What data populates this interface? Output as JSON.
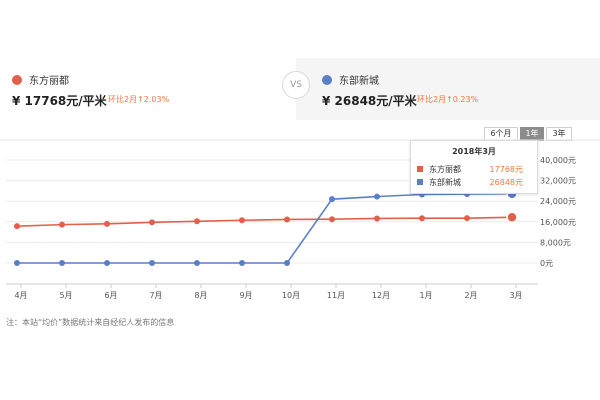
{
  "header": {
    "left": {
      "name": "东方丽都",
      "price": "¥ 17768元/平米",
      "change": "环比2月↑2.03%",
      "color": "#e2604b"
    },
    "vs": "VS",
    "right": {
      "name": "东部新城",
      "price": "¥ 26848元/平米",
      "change": "环比2月↑0.23%",
      "color": "#5b7fc6"
    }
  },
  "range_tabs": [
    {
      "label": "6个月",
      "active": false
    },
    {
      "label": "1年",
      "active": true
    },
    {
      "label": "3年",
      "active": false
    }
  ],
  "tooltip": {
    "title": "2018年3月",
    "rows": [
      {
        "name": "东方丽都",
        "value": "17768元",
        "color": "#e2604b"
      },
      {
        "name": "东部新城",
        "value": "26848元",
        "color": "#5b7fc6"
      }
    ]
  },
  "note": "注：本站“均价”数据统计来自经纪人发布的信息",
  "chart_data": {
    "type": "line",
    "categories": [
      "4月",
      "5月",
      "6月",
      "7月",
      "8月",
      "9月",
      "10月",
      "11月",
      "12月",
      "1月",
      "2月",
      "3月"
    ],
    "y_ticks": [
      0,
      8000,
      16000,
      24000,
      32000,
      40000
    ],
    "y_tick_labels": [
      "0元",
      "8,000元",
      "16,000元",
      "24,000元",
      "32,000元",
      "40,000元"
    ],
    "ylim": [
      0,
      40000
    ],
    "grid": true,
    "series": [
      {
        "name": "东方丽都",
        "color": "#e2604b",
        "values": [
          14300,
          14900,
          15200,
          15800,
          16200,
          16600,
          16900,
          17000,
          17300,
          17400,
          17414,
          17768
        ]
      },
      {
        "name": "东部新城",
        "color": "#5b7fc6",
        "values": [
          0,
          0,
          0,
          0,
          0,
          0,
          0,
          24800,
          25800,
          26600,
          26786,
          26848
        ]
      }
    ],
    "highlight_index": 11
  }
}
